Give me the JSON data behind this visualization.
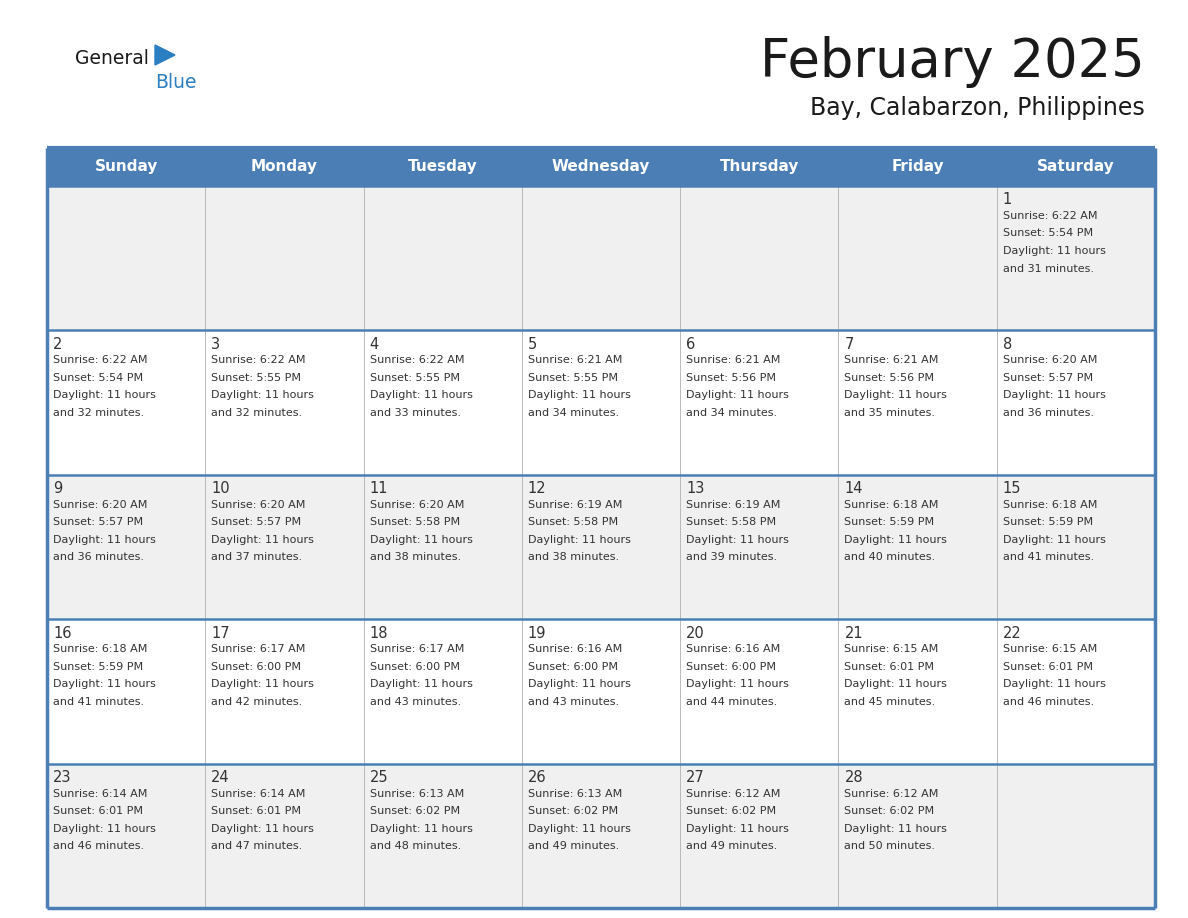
{
  "title": "February 2025",
  "subtitle": "Bay, Calabarzon, Philippines",
  "header_bg": "#4a7eb5",
  "header_text_color": "#ffffff",
  "weekdays": [
    "Sunday",
    "Monday",
    "Tuesday",
    "Wednesday",
    "Thursday",
    "Friday",
    "Saturday"
  ],
  "row_bg_odd": "#f0f0f0",
  "row_bg_even": "#ffffff",
  "border_color": "#4a7eb5",
  "cell_border_color": "#b0b0b0",
  "text_color": "#333333",
  "day_num_color": "#333333",
  "logo_general_color": "#1a1a1a",
  "logo_blue_color": "#2b7ec1",
  "calendar": [
    [
      null,
      null,
      null,
      null,
      null,
      null,
      {
        "day": 1,
        "sunrise": "6:22 AM",
        "sunset": "5:54 PM",
        "daylight": "11 hours and 31 minutes."
      }
    ],
    [
      {
        "day": 2,
        "sunrise": "6:22 AM",
        "sunset": "5:54 PM",
        "daylight": "11 hours and 32 minutes."
      },
      {
        "day": 3,
        "sunrise": "6:22 AM",
        "sunset": "5:55 PM",
        "daylight": "11 hours and 32 minutes."
      },
      {
        "day": 4,
        "sunrise": "6:22 AM",
        "sunset": "5:55 PM",
        "daylight": "11 hours and 33 minutes."
      },
      {
        "day": 5,
        "sunrise": "6:21 AM",
        "sunset": "5:55 PM",
        "daylight": "11 hours and 34 minutes."
      },
      {
        "day": 6,
        "sunrise": "6:21 AM",
        "sunset": "5:56 PM",
        "daylight": "11 hours and 34 minutes."
      },
      {
        "day": 7,
        "sunrise": "6:21 AM",
        "sunset": "5:56 PM",
        "daylight": "11 hours and 35 minutes."
      },
      {
        "day": 8,
        "sunrise": "6:20 AM",
        "sunset": "5:57 PM",
        "daylight": "11 hours and 36 minutes."
      }
    ],
    [
      {
        "day": 9,
        "sunrise": "6:20 AM",
        "sunset": "5:57 PM",
        "daylight": "11 hours and 36 minutes."
      },
      {
        "day": 10,
        "sunrise": "6:20 AM",
        "sunset": "5:57 PM",
        "daylight": "11 hours and 37 minutes."
      },
      {
        "day": 11,
        "sunrise": "6:20 AM",
        "sunset": "5:58 PM",
        "daylight": "11 hours and 38 minutes."
      },
      {
        "day": 12,
        "sunrise": "6:19 AM",
        "sunset": "5:58 PM",
        "daylight": "11 hours and 38 minutes."
      },
      {
        "day": 13,
        "sunrise": "6:19 AM",
        "sunset": "5:58 PM",
        "daylight": "11 hours and 39 minutes."
      },
      {
        "day": 14,
        "sunrise": "6:18 AM",
        "sunset": "5:59 PM",
        "daylight": "11 hours and 40 minutes."
      },
      {
        "day": 15,
        "sunrise": "6:18 AM",
        "sunset": "5:59 PM",
        "daylight": "11 hours and 41 minutes."
      }
    ],
    [
      {
        "day": 16,
        "sunrise": "6:18 AM",
        "sunset": "5:59 PM",
        "daylight": "11 hours and 41 minutes."
      },
      {
        "day": 17,
        "sunrise": "6:17 AM",
        "sunset": "6:00 PM",
        "daylight": "11 hours and 42 minutes."
      },
      {
        "day": 18,
        "sunrise": "6:17 AM",
        "sunset": "6:00 PM",
        "daylight": "11 hours and 43 minutes."
      },
      {
        "day": 19,
        "sunrise": "6:16 AM",
        "sunset": "6:00 PM",
        "daylight": "11 hours and 43 minutes."
      },
      {
        "day": 20,
        "sunrise": "6:16 AM",
        "sunset": "6:00 PM",
        "daylight": "11 hours and 44 minutes."
      },
      {
        "day": 21,
        "sunrise": "6:15 AM",
        "sunset": "6:01 PM",
        "daylight": "11 hours and 45 minutes."
      },
      {
        "day": 22,
        "sunrise": "6:15 AM",
        "sunset": "6:01 PM",
        "daylight": "11 hours and 46 minutes."
      }
    ],
    [
      {
        "day": 23,
        "sunrise": "6:14 AM",
        "sunset": "6:01 PM",
        "daylight": "11 hours and 46 minutes."
      },
      {
        "day": 24,
        "sunrise": "6:14 AM",
        "sunset": "6:01 PM",
        "daylight": "11 hours and 47 minutes."
      },
      {
        "day": 25,
        "sunrise": "6:13 AM",
        "sunset": "6:02 PM",
        "daylight": "11 hours and 48 minutes."
      },
      {
        "day": 26,
        "sunrise": "6:13 AM",
        "sunset": "6:02 PM",
        "daylight": "11 hours and 49 minutes."
      },
      {
        "day": 27,
        "sunrise": "6:12 AM",
        "sunset": "6:02 PM",
        "daylight": "11 hours and 49 minutes."
      },
      {
        "day": 28,
        "sunrise": "6:12 AM",
        "sunset": "6:02 PM",
        "daylight": "11 hours and 50 minutes."
      },
      null
    ]
  ]
}
